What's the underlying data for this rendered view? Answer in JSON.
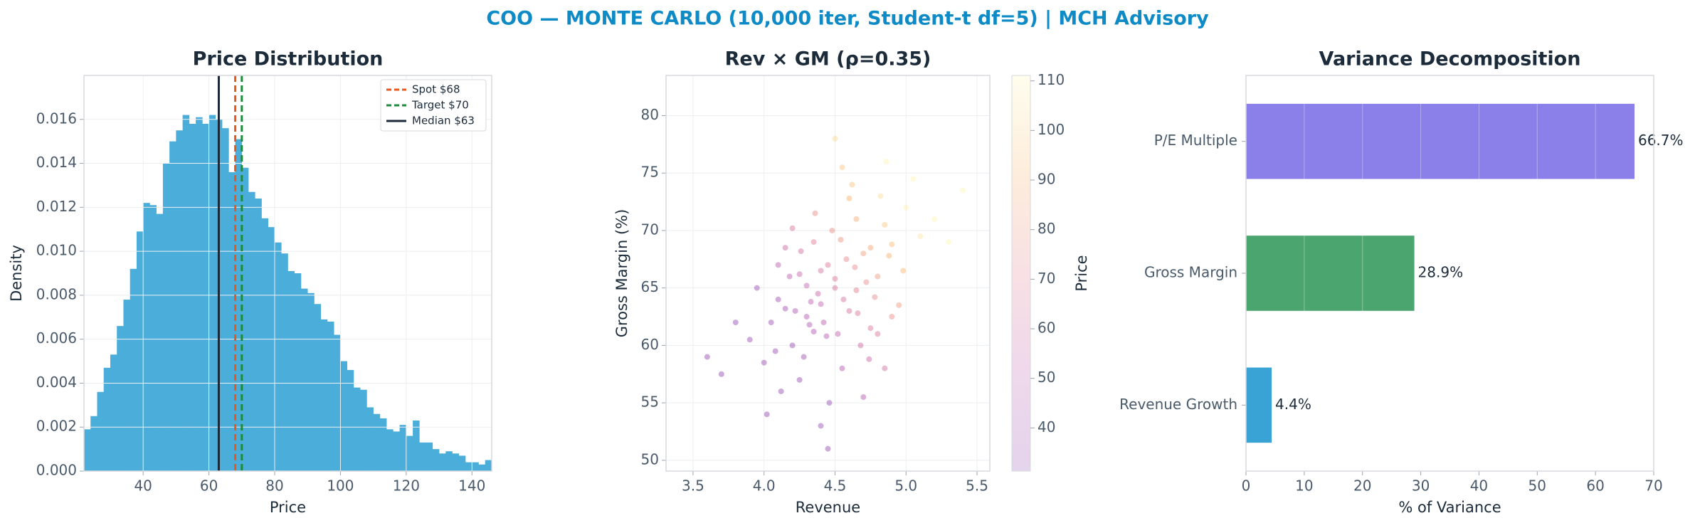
{
  "title": "COO — MONTE CARLO (10,000 iter, Student-t df=5) | MCH Advisory",
  "chart_data": [
    {
      "type": "histogram",
      "title": "Price Distribution",
      "xlabel": "Price",
      "ylabel": "Density",
      "color": "#4badd9",
      "bins": [
        22,
        24,
        26,
        28,
        30,
        32,
        34,
        36,
        38,
        40,
        42,
        44,
        46,
        48,
        50,
        52,
        54,
        56,
        58,
        60,
        62,
        64,
        66,
        68,
        70,
        72,
        74,
        76,
        78,
        80,
        82,
        84,
        86,
        88,
        90,
        92,
        94,
        96,
        98,
        100,
        102,
        104,
        106,
        108,
        110,
        112,
        114,
        116,
        118,
        120,
        122,
        124,
        126,
        128,
        130,
        132,
        134,
        136,
        138,
        140,
        142,
        144,
        146
      ],
      "values": [
        0.0019,
        0.0025,
        0.0036,
        0.0047,
        0.0053,
        0.0066,
        0.0078,
        0.0092,
        0.0109,
        0.0122,
        0.0121,
        0.0117,
        0.014,
        0.015,
        0.0155,
        0.0162,
        0.0158,
        0.0161,
        0.0158,
        0.0162,
        0.016,
        0.0156,
        0.0136,
        0.0151,
        0.0138,
        0.0127,
        0.0124,
        0.0115,
        0.0111,
        0.0104,
        0.0099,
        0.0091,
        0.009,
        0.0083,
        0.0081,
        0.0076,
        0.0069,
        0.0068,
        0.0062,
        0.005,
        0.0046,
        0.0038,
        0.0037,
        0.0029,
        0.0026,
        0.0024,
        0.0019,
        0.0018,
        0.0021,
        0.0016,
        0.0023,
        0.0013,
        0.0013,
        0.001,
        0.0008,
        0.0009,
        0.0008,
        0.0007,
        0.0004,
        0.0004,
        0.0003,
        0.0005
      ],
      "xlim": [
        22,
        146
      ],
      "xticks": [
        40,
        60,
        80,
        100,
        120,
        140
      ],
      "ylim": [
        0,
        0.018
      ],
      "yticks": [
        {
          "value": 0,
          "label": "0.000"
        },
        0.002,
        0.004,
        0.006,
        0.008,
        {
          "value": 0.01,
          "label": "0.010"
        },
        0.012,
        0.014,
        0.016
      ],
      "vlines": [
        {
          "name": "Spot $68",
          "value": 68,
          "color": "#e8581c",
          "dashed": true
        },
        {
          "name": "Target $70",
          "value": 70,
          "color": "#1e8a3c",
          "dashed": true
        },
        {
          "name": "Median $63",
          "value": 63,
          "color": "#1b2838",
          "dashed": false
        }
      ],
      "legend": "upper right",
      "grid": true
    },
    {
      "type": "scatter",
      "title": "Rev × GM (ρ=0.35)",
      "xlabel": "Revenue",
      "ylabel": "Gross Margin (%)",
      "x": [
        4.5,
        4.3,
        4.7,
        4.2,
        4.85,
        4.4,
        4.6,
        4.1,
        5.0,
        4.55,
        4.35,
        4.75,
        3.9,
        4.45,
        4.65,
        4.25,
        4.8,
        4.15,
        4.95,
        4.38,
        4.52,
        4.62,
        4.05,
        4.72,
        4.28,
        4.48,
        4.58,
        4.33,
        4.9,
        4.18,
        4.68,
        4.42,
        4.82,
        4.0,
        5.1,
        4.12,
        4.56,
        4.36,
        4.78,
        4.22,
        4.64,
        4.46,
        4.88,
        3.95,
        5.05,
        4.32,
        4.54,
        4.74,
        4.26,
        4.44,
        4.66,
        4.08,
        4.86,
        4.4,
        4.6,
        4.3,
        4.7,
        4.5,
        4.2,
        4.8,
        3.8,
        5.2,
        4.02,
        4.98,
        4.15,
        4.85,
        4.35,
        4.65,
        3.7,
        5.3,
        4.45,
        4.55,
        4.25,
        4.75,
        3.6,
        5.4,
        4.1,
        4.9,
        4.5,
        4.4
      ],
      "y": [
        65,
        62.5,
        68,
        60,
        70.5,
        66.5,
        63,
        64,
        72,
        58,
        69,
        61.5,
        60.5,
        67,
        71,
        57,
        66,
        68.5,
        63.5,
        64.5,
        61,
        74,
        62,
        65.5,
        59,
        70,
        67.5,
        63.8,
        68.8,
        66,
        60,
        62,
        73,
        58.5,
        69.5,
        56,
        64,
        71.5,
        64.2,
        63,
        66.8,
        55,
        67.8,
        65,
        74.5,
        61.8,
        69.2,
        58.8,
        68.2,
        60.8,
        62.8,
        59.5,
        76,
        53,
        72.8,
        65.2,
        55.5,
        78,
        70.2,
        61,
        62,
        71,
        54,
        66.5,
        63.2,
        58,
        61.2,
        64.8,
        57.5,
        69,
        51,
        75.5,
        66.2,
        68.5,
        59,
        73.5,
        67,
        62.5,
        65.8,
        63.6
      ],
      "color_values": [
        63,
        46,
        82,
        33,
        97,
        62,
        62,
        40,
        109,
        45,
        68,
        65,
        35,
        66,
        88,
        35,
        81,
        56,
        81,
        56,
        52,
        96,
        36,
        76,
        37,
        77,
        74,
        51,
        94,
        50,
        57,
        50,
        103,
        34,
        106,
        33,
        63,
        75,
        75,
        43,
        75,
        34,
        90,
        36,
        110,
        44,
        78,
        56,
        61,
        47,
        64,
        35,
        110,
        34,
        91,
        54,
        45,
        102,
        64,
        66,
        33,
        110,
        32,
        92,
        40,
        60,
        44,
        70,
        32,
        111,
        33,
        97,
        54,
        86,
        32,
        111,
        49,
        76,
        65,
        54
      ],
      "colormap": [
        "#6a0d99",
        "#a5278f",
        "#d9546a",
        "#f59a3a",
        "#fff5a0"
      ],
      "xlim": [
        3.31,
        5.59
      ],
      "xticks": [
        3.5,
        {
          "value": 4,
          "label": "4.0"
        },
        4.5,
        {
          "value": 5,
          "label": "5.0"
        },
        5.5
      ],
      "ylim": [
        49.06,
        83.5
      ],
      "yticks": [
        50,
        55,
        60,
        65,
        70,
        75,
        80
      ],
      "colorbar": {
        "label": "Price",
        "lim": [
          31.3,
          111.1
        ],
        "ticks": [
          40,
          50,
          60,
          70,
          80,
          90,
          100,
          110
        ]
      },
      "grid": true
    },
    {
      "type": "hbar",
      "title": "Variance Decomposition",
      "xlabel": "% of Variance",
      "categories": [
        "Revenue Growth",
        "Gross Margin",
        "P/E Multiple"
      ],
      "values": [
        4.4,
        28.9,
        66.7
      ],
      "value_labels": [
        "4.4%",
        "28.9%",
        "66.7%"
      ],
      "colors": [
        "#3aa3d6",
        "#4aa56e",
        "#8b7fea"
      ],
      "xlim": [
        0,
        70
      ],
      "xticks": [
        0,
        10,
        20,
        30,
        40,
        50,
        60,
        70
      ],
      "grid": true
    }
  ]
}
